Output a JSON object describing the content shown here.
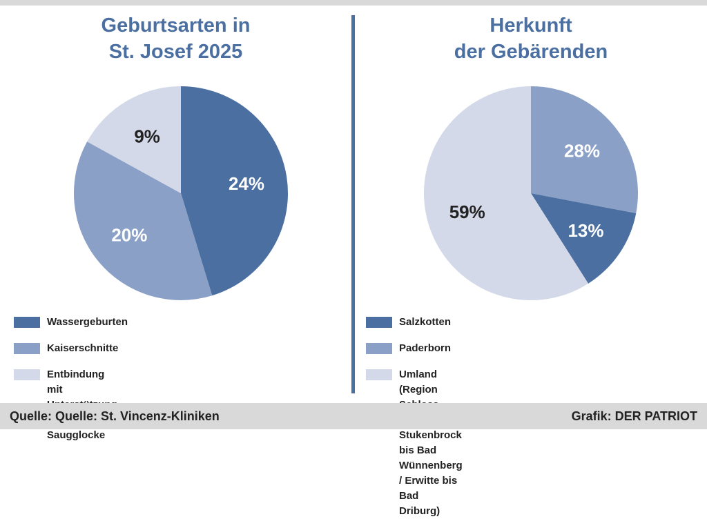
{
  "colors": {
    "dark": "#4a6fa0",
    "medium": "#8aa0c6",
    "light": "#d3d9e8",
    "title": "#4a6fa0"
  },
  "chart_data": [
    {
      "type": "pie",
      "title": "Geburtsarten in\nSt. Josef 2025",
      "slices": [
        {
          "label": "Wassergeburten",
          "value": 24,
          "display": "24%",
          "color": "#4a6fa0",
          "text_color": "#ffffff"
        },
        {
          "label": "Kaiserschnitte",
          "value": 20,
          "display": "20%",
          "color": "#8aa0c6",
          "text_color": "#ffffff"
        },
        {
          "label": "Entbindung mit Unterstützung\ndurch Saugglocke",
          "value": 9,
          "display": "9%",
          "color": "#d3d9e8",
          "text_color": "#222222"
        }
      ]
    },
    {
      "type": "pie",
      "title": "Herkunft\nder Gebärenden",
      "slices": [
        {
          "label": "Paderborn",
          "value": 28,
          "display": "28%",
          "color": "#8aa0c6",
          "text_color": "#ffffff"
        },
        {
          "label": "Salzkotten",
          "value": 13,
          "display": "13%",
          "color": "#4a6fa0",
          "text_color": "#ffffff"
        },
        {
          "label": "Umland (Region Schloss Holte-Stukenbrock\nbis Bad Wünnenberg / Erwitte bis Bad Driburg)",
          "value": 59,
          "display": "59%",
          "color": "#d3d9e8",
          "text_color": "#222222"
        }
      ],
      "legend_order": [
        "Salzkotten",
        "Paderborn",
        "Umland (Region Schloss Holte-Stukenbrock\nbis Bad Wünnenberg / Erwitte bis Bad Driburg)"
      ]
    }
  ],
  "footer": {
    "source": "Quelle: Quelle: St. Vincenz-Kliniken",
    "credit": "Grafik: DER PATRIOT"
  }
}
